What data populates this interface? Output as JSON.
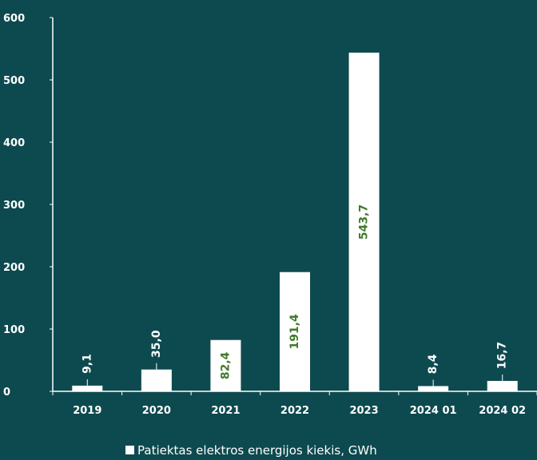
{
  "chart_data": {
    "type": "bar",
    "categories": [
      "2019",
      "2020",
      "2021",
      "2022",
      "2023",
      "2024 01",
      "2024 02"
    ],
    "series": [
      {
        "name": "Patiektas elektros energijos kiekis, GWh",
        "values": [
          9.1,
          35.0,
          82.4,
          191.4,
          543.7,
          8.4,
          16.7
        ],
        "labels": [
          "9,1",
          "35,0",
          "82,4",
          "191,4",
          "543,7",
          "8,4",
          "16,7"
        ]
      }
    ],
    "y_ticks": [
      "0",
      "100",
      "200",
      "300",
      "400",
      "500",
      "600"
    ],
    "ylim": [
      0,
      600
    ],
    "legend_position": "bottom",
    "grid": false,
    "colors": {
      "background": "#0d4a4f",
      "bar": "#ffffff",
      "axis": "#ffffff",
      "label_outside": "#ffffff",
      "label_inside": "#3f7a2a"
    }
  }
}
